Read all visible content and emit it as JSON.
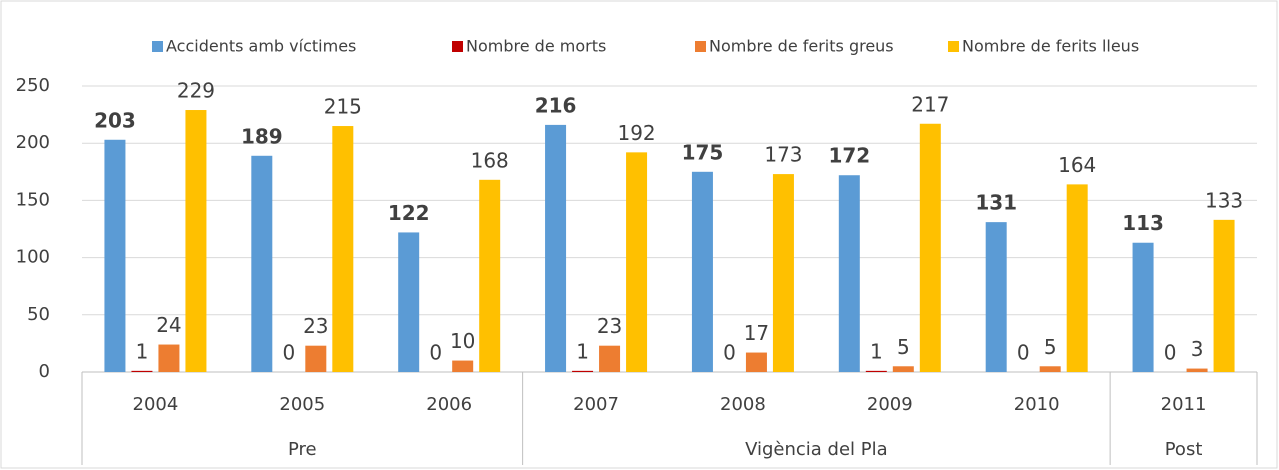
{
  "chart_data": {
    "type": "bar",
    "groups": [
      {
        "name": "Pre",
        "categories": [
          "2004",
          "2005",
          "2006"
        ]
      },
      {
        "name": "Vigència del Pla",
        "categories": [
          "2007",
          "2008",
          "2009",
          "2010"
        ]
      },
      {
        "name": "Post",
        "categories": [
          "2011"
        ]
      }
    ],
    "series": [
      {
        "name": "Accidents amb víctimes",
        "color": "#5b9bd5",
        "label_weight": "bold",
        "values": [
          203,
          189,
          122,
          216,
          175,
          172,
          131,
          113
        ]
      },
      {
        "name": "Nombre de morts",
        "color": "#c00000",
        "values": [
          1,
          0,
          0,
          1,
          0,
          1,
          0,
          0
        ]
      },
      {
        "name": "Nombre de ferits greus",
        "color": "#ed7d31",
        "values": [
          24,
          23,
          10,
          23,
          17,
          5,
          5,
          3
        ]
      },
      {
        "name": "Nombre de ferits lleus",
        "color": "#ffc000",
        "values": [
          229,
          215,
          168,
          192,
          173,
          217,
          164,
          133
        ]
      }
    ],
    "ylim": [
      0,
      250
    ],
    "yticks": [
      0,
      50,
      100,
      150,
      200,
      250
    ],
    "grid": true,
    "legend": "top"
  }
}
